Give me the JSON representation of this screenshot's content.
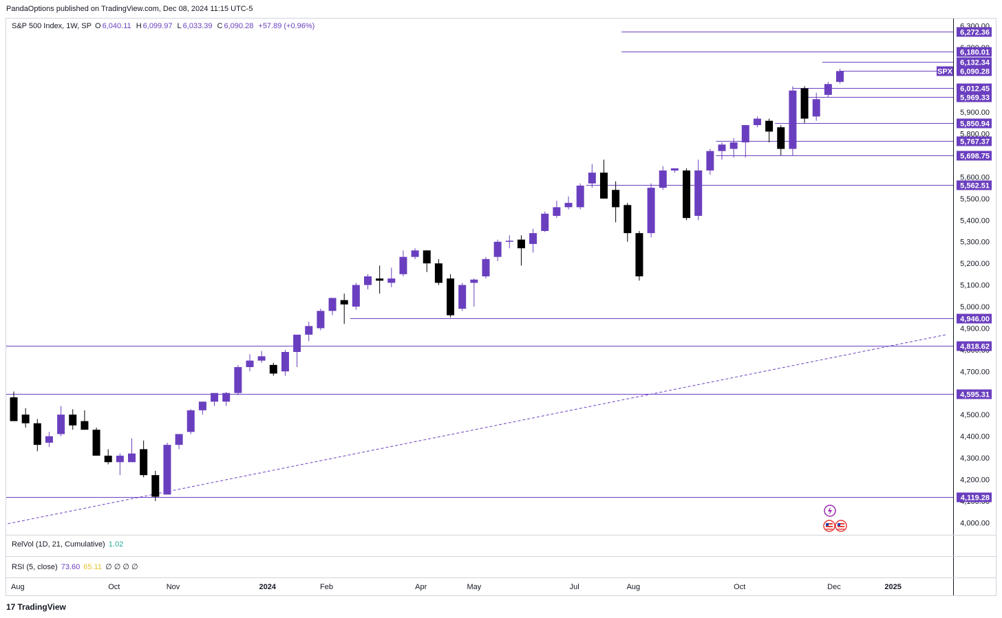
{
  "header": {
    "publisher": "PandaOptions published on TradingView.com, Dec 08, 2024 11:15 UTC-5"
  },
  "legend": {
    "symbol": "S&P 500 Index, 1W, SP",
    "o_label": "O",
    "o_value": "6,040.11",
    "h_label": "H",
    "h_value": "6,099.97",
    "l_label": "L",
    "l_value": "6,033.39",
    "c_label": "C",
    "c_value": "6,090.28",
    "change": "+57.89 (+0.96%)"
  },
  "indicators": {
    "relvol_label": "RelVol (1D, 21, Cumulative)",
    "relvol_value": "1.02",
    "rsi_label": "RSI (5, close)",
    "rsi_value1": "73.60",
    "rsi_value2": "65.11",
    "rsi_zeros": "∅ ∅ ∅ ∅"
  },
  "footer": {
    "brand": "TradingView",
    "mark": "17"
  },
  "colors": {
    "bull": "#6a3fbf",
    "bear": "#000000",
    "level": "#6a3fbf"
  },
  "chart_data": {
    "type": "candlestick",
    "symbol_badge": "SPX",
    "last_price": "6,090.28",
    "y_range": [
      3950,
      6330
    ],
    "y_ticks": [
      {
        "v": 4000,
        "label": "4,000.00"
      },
      {
        "v": 4100,
        "label": "4,100.00"
      },
      {
        "v": 4200,
        "label": "4,200.00"
      },
      {
        "v": 4300,
        "label": "4,300.00"
      },
      {
        "v": 4400,
        "label": "4,400.00"
      },
      {
        "v": 4500,
        "label": "4,500.00"
      },
      {
        "v": 4600,
        "label": "4,600.00"
      },
      {
        "v": 4700,
        "label": "4,700.00"
      },
      {
        "v": 4800,
        "label": "4,800.00"
      },
      {
        "v": 4900,
        "label": "4,900.00"
      },
      {
        "v": 5000,
        "label": "5,000.00"
      },
      {
        "v": 5100,
        "label": "5,100.00"
      },
      {
        "v": 5200,
        "label": "5,200.00"
      },
      {
        "v": 5300,
        "label": "5,300.00"
      },
      {
        "v": 5400,
        "label": "5,400.00"
      },
      {
        "v": 5500,
        "label": "5,500.00"
      },
      {
        "v": 5600,
        "label": "5,600.00"
      },
      {
        "v": 5700,
        "label": "5,700.00"
      },
      {
        "v": 5800,
        "label": "5,800.00"
      },
      {
        "v": 5900,
        "label": "5,900.00"
      },
      {
        "v": 6000,
        "label": "6,000.00"
      },
      {
        "v": 6100,
        "label": "6,100.00"
      },
      {
        "v": 6200,
        "label": "6,200.00"
      },
      {
        "v": 6300,
        "label": "6,300.00"
      }
    ],
    "x_ticks": [
      {
        "label": "Aug",
        "bar": 0
      },
      {
        "label": "Oct",
        "bar": 8.5
      },
      {
        "label": "Nov",
        "bar": 13.5
      },
      {
        "label": "2024",
        "bar": 21.5,
        "bold": true
      },
      {
        "label": "Feb",
        "bar": 26.5
      },
      {
        "label": "Apr",
        "bar": 34.5
      },
      {
        "label": "May",
        "bar": 39
      },
      {
        "label": "Jul",
        "bar": 47.5
      },
      {
        "label": "Aug",
        "bar": 52.5
      },
      {
        "label": "Oct",
        "bar": 61.5
      },
      {
        "label": "Dec",
        "bar": 69.5
      },
      {
        "label": "2025",
        "bar": 74.5,
        "bold": true
      }
    ],
    "levels": [
      {
        "price": 6272.36,
        "label": "6,272.36",
        "from_bar": 51.5
      },
      {
        "price": 6180.01,
        "label": "6,180.01",
        "from_bar": 51.5
      },
      {
        "price": 6132.34,
        "label": "6,132.34",
        "from_bar": 68.5
      },
      {
        "price": 6090.28,
        "label": "6,090.28",
        "from_bar": 70
      },
      {
        "price": 6012.45,
        "label": "6,012.45",
        "from_bar": 66
      },
      {
        "price": 5969.33,
        "label": "5,969.33",
        "from_bar": 67
      },
      {
        "price": 5850.94,
        "label": "5,850.94",
        "from_bar": 64.5
      },
      {
        "price": 5767.37,
        "label": "5,767.37",
        "from_bar": 59.5
      },
      {
        "price": 5698.75,
        "label": "5,698.75",
        "from_bar": 59.5
      },
      {
        "price": 5562.51,
        "label": "5,562.51",
        "from_bar": 48.5
      },
      {
        "price": 4946.0,
        "label": "4,946.00",
        "from_bar": 28.5
      },
      {
        "price": 4818.62,
        "label": "4,818.62",
        "from_bar": -0.5
      },
      {
        "price": 4595.31,
        "label": "4,595.31",
        "from_bar": -0.5
      },
      {
        "price": 4119.28,
        "label": "4,119.28",
        "from_bar": -0.5
      }
    ],
    "trendline": {
      "from": {
        "bar": -0.5,
        "price": 3995
      },
      "to": {
        "bar": 79,
        "price": 4870
      }
    },
    "candles": [
      {
        "o": 4580,
        "h": 4607,
        "l": 4480,
        "c": 4470
      },
      {
        "o": 4500,
        "h": 4530,
        "l": 4440,
        "c": 4460
      },
      {
        "o": 4460,
        "h": 4480,
        "l": 4330,
        "c": 4360
      },
      {
        "o": 4370,
        "h": 4420,
        "l": 4350,
        "c": 4400
      },
      {
        "o": 4410,
        "h": 4540,
        "l": 4400,
        "c": 4500
      },
      {
        "o": 4500,
        "h": 4525,
        "l": 4430,
        "c": 4450
      },
      {
        "o": 4470,
        "h": 4520,
        "l": 4430,
        "c": 4430
      },
      {
        "o": 4430,
        "h": 4440,
        "l": 4310,
        "c": 4310
      },
      {
        "o": 4310,
        "h": 4340,
        "l": 4270,
        "c": 4280
      },
      {
        "o": 4280,
        "h": 4320,
        "l": 4220,
        "c": 4310
      },
      {
        "o": 4280,
        "h": 4390,
        "l": 4280,
        "c": 4320
      },
      {
        "o": 4340,
        "h": 4380,
        "l": 4210,
        "c": 4220
      },
      {
        "o": 4220,
        "h": 4240,
        "l": 4100,
        "c": 4120
      },
      {
        "o": 4130,
        "h": 4370,
        "l": 4130,
        "c": 4360
      },
      {
        "o": 4360,
        "h": 4400,
        "l": 4340,
        "c": 4410
      },
      {
        "o": 4420,
        "h": 4525,
        "l": 4410,
        "c": 4520
      },
      {
        "o": 4520,
        "h": 4560,
        "l": 4500,
        "c": 4560
      },
      {
        "o": 4560,
        "h": 4600,
        "l": 4540,
        "c": 4600
      },
      {
        "o": 4560,
        "h": 4605,
        "l": 4540,
        "c": 4600
      },
      {
        "o": 4600,
        "h": 4730,
        "l": 4590,
        "c": 4720
      },
      {
        "o": 4720,
        "h": 4780,
        "l": 4700,
        "c": 4750
      },
      {
        "o": 4750,
        "h": 4795,
        "l": 4740,
        "c": 4770
      },
      {
        "o": 4730,
        "h": 4740,
        "l": 4680,
        "c": 4690
      },
      {
        "o": 4700,
        "h": 4800,
        "l": 4680,
        "c": 4790
      },
      {
        "o": 4790,
        "h": 4850,
        "l": 4720,
        "c": 4870
      },
      {
        "o": 4870,
        "h": 4930,
        "l": 4840,
        "c": 4910
      },
      {
        "o": 4900,
        "h": 4990,
        "l": 4890,
        "c": 4980
      },
      {
        "o": 4980,
        "h": 5030,
        "l": 4960,
        "c": 5040
      },
      {
        "o": 5030,
        "h": 5060,
        "l": 4920,
        "c": 5010
      },
      {
        "o": 5000,
        "h": 5110,
        "l": 4985,
        "c": 5100
      },
      {
        "o": 5100,
        "h": 5150,
        "l": 5080,
        "c": 5140
      },
      {
        "o": 5130,
        "h": 5190,
        "l": 5060,
        "c": 5120
      },
      {
        "o": 5110,
        "h": 5180,
        "l": 5090,
        "c": 5130
      },
      {
        "o": 5150,
        "h": 5260,
        "l": 5140,
        "c": 5230
      },
      {
        "o": 5230,
        "h": 5270,
        "l": 5220,
        "c": 5260
      },
      {
        "o": 5260,
        "h": 5260,
        "l": 5160,
        "c": 5200
      },
      {
        "o": 5200,
        "h": 5220,
        "l": 5100,
        "c": 5110
      },
      {
        "o": 5130,
        "h": 5150,
        "l": 4950,
        "c": 4960
      },
      {
        "o": 4990,
        "h": 5110,
        "l": 4980,
        "c": 5100
      },
      {
        "o": 5110,
        "h": 5130,
        "l": 5000,
        "c": 5125
      },
      {
        "o": 5140,
        "h": 5230,
        "l": 5130,
        "c": 5220
      },
      {
        "o": 5230,
        "h": 5310,
        "l": 5210,
        "c": 5300
      },
      {
        "o": 5300,
        "h": 5330,
        "l": 5270,
        "c": 5305
      },
      {
        "o": 5310,
        "h": 5330,
        "l": 5190,
        "c": 5270
      },
      {
        "o": 5290,
        "h": 5360,
        "l": 5250,
        "c": 5340
      },
      {
        "o": 5350,
        "h": 5440,
        "l": 5345,
        "c": 5430
      },
      {
        "o": 5420,
        "h": 5490,
        "l": 5410,
        "c": 5460
      },
      {
        "o": 5460,
        "h": 5510,
        "l": 5450,
        "c": 5480
      },
      {
        "o": 5460,
        "h": 5570,
        "l": 5450,
        "c": 5560
      },
      {
        "o": 5570,
        "h": 5660,
        "l": 5550,
        "c": 5620
      },
      {
        "o": 5620,
        "h": 5680,
        "l": 5500,
        "c": 5500
      },
      {
        "o": 5540,
        "h": 5580,
        "l": 5390,
        "c": 5460
      },
      {
        "o": 5470,
        "h": 5480,
        "l": 5300,
        "c": 5340
      },
      {
        "o": 5340,
        "h": 5350,
        "l": 5120,
        "c": 5140
      },
      {
        "o": 5340,
        "h": 5570,
        "l": 5320,
        "c": 5550
      },
      {
        "o": 5550,
        "h": 5650,
        "l": 5540,
        "c": 5630
      },
      {
        "o": 5630,
        "h": 5640,
        "l": 5620,
        "c": 5640
      },
      {
        "o": 5630,
        "h": 5640,
        "l": 5400,
        "c": 5410
      },
      {
        "o": 5420,
        "h": 5680,
        "l": 5400,
        "c": 5630
      },
      {
        "o": 5630,
        "h": 5730,
        "l": 5610,
        "c": 5720
      },
      {
        "o": 5720,
        "h": 5760,
        "l": 5680,
        "c": 5750
      },
      {
        "o": 5730,
        "h": 5780,
        "l": 5690,
        "c": 5760
      },
      {
        "o": 5760,
        "h": 5840,
        "l": 5690,
        "c": 5840
      },
      {
        "o": 5840,
        "h": 5880,
        "l": 5830,
        "c": 5870
      },
      {
        "o": 5860,
        "h": 5870,
        "l": 5760,
        "c": 5810
      },
      {
        "o": 5830,
        "h": 5840,
        "l": 5700,
        "c": 5730
      },
      {
        "o": 5730,
        "h": 6020,
        "l": 5700,
        "c": 6000
      },
      {
        "o": 6010,
        "h": 6020,
        "l": 5850,
        "c": 5870
      },
      {
        "o": 5880,
        "h": 5990,
        "l": 5860,
        "c": 5960
      },
      {
        "o": 5980,
        "h": 6040,
        "l": 5970,
        "c": 6030
      },
      {
        "o": 6040,
        "h": 6100,
        "l": 6033,
        "c": 6090
      }
    ]
  }
}
